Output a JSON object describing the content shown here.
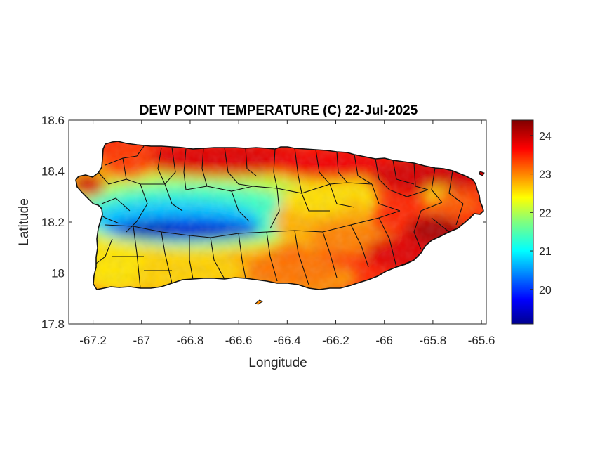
{
  "chart_data": {
    "type": "heatmap",
    "title": "DEW POINT TEMPERATURE (C) 22-Jul-2025",
    "xlabel": "Longitude",
    "ylabel": "Latitude",
    "xlim": [
      -67.3,
      -65.58
    ],
    "ylim": [
      17.8,
      18.6
    ],
    "x_ticks": [
      "-67.2",
      "-67",
      "-66.8",
      "-66.6",
      "-66.4",
      "-66.2",
      "-66",
      "-65.8",
      "-65.6"
    ],
    "y_ticks": [
      "18.6",
      "18.4",
      "18.2",
      "18",
      "17.8"
    ],
    "colorbar": {
      "colormap": "jet",
      "range": [
        19.1,
        24.4
      ],
      "ticks": [
        "24",
        "23",
        "22",
        "21",
        "20"
      ]
    },
    "field_samples": [
      {
        "lon": -67.05,
        "lat": 18.46,
        "value": 23.5
      },
      {
        "lon": -66.6,
        "lat": 18.46,
        "value": 24.2
      },
      {
        "lon": -66.2,
        "lat": 18.44,
        "value": 24.0
      },
      {
        "lon": -65.9,
        "lat": 18.42,
        "value": 24.3
      },
      {
        "lon": -67.22,
        "lat": 18.36,
        "value": 24.1
      },
      {
        "lon": -66.95,
        "lat": 18.33,
        "value": 22.6
      },
      {
        "lon": -66.85,
        "lat": 18.24,
        "value": 21.2
      },
      {
        "lon": -66.8,
        "lat": 18.16,
        "value": 19.5
      },
      {
        "lon": -66.6,
        "lat": 18.17,
        "value": 19.8
      },
      {
        "lon": -66.5,
        "lat": 18.22,
        "value": 21.2
      },
      {
        "lon": -66.3,
        "lat": 18.25,
        "value": 22.4
      },
      {
        "lon": -66.15,
        "lat": 18.2,
        "value": 23.2
      },
      {
        "lon": -65.9,
        "lat": 18.15,
        "value": 24.2
      },
      {
        "lon": -65.78,
        "lat": 18.28,
        "value": 22.2
      },
      {
        "lon": -67.15,
        "lat": 18.08,
        "value": 22.2
      },
      {
        "lon": -66.9,
        "lat": 18.02,
        "value": 22.3
      },
      {
        "lon": -66.6,
        "lat": 18.02,
        "value": 22.6
      },
      {
        "lon": -66.3,
        "lat": 17.97,
        "value": 23.6
      },
      {
        "lon": -66.05,
        "lat": 18.0,
        "value": 24.1
      }
    ]
  }
}
